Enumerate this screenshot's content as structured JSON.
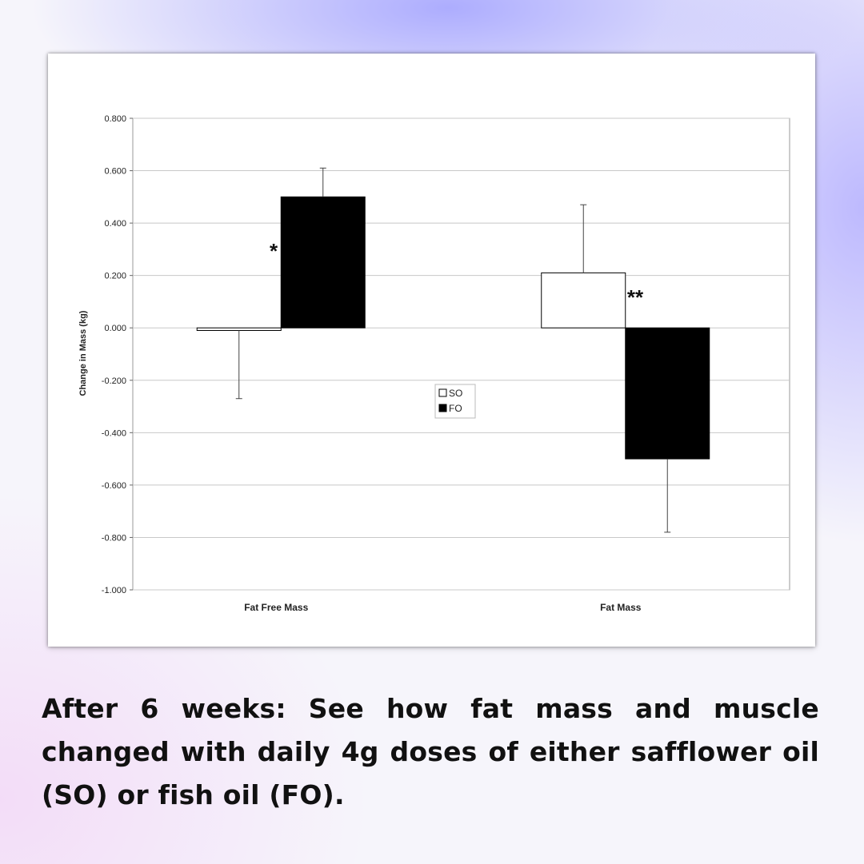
{
  "caption": "After 6 weeks: See how fat mass and muscle changed with daily 4g doses of either safflower oil (SO) or fish oil (FO).",
  "chart_data": {
    "type": "bar",
    "categories": [
      "Fat Free Mass",
      "Fat Mass"
    ],
    "ylabel": "Change in Mass (kg)",
    "xlabel": "",
    "ylim": [
      -1.0,
      0.8
    ],
    "yticks": [
      0.8,
      0.6,
      0.4,
      0.2,
      0.0,
      -0.2,
      -0.4,
      -0.6,
      -0.8,
      -1.0
    ],
    "ytick_labels": [
      "0.800",
      "0.600",
      "0.400",
      "0.200",
      "0.000",
      "-0.200",
      "-0.400",
      "-0.600",
      "-0.800",
      "-1.000"
    ],
    "grid": true,
    "legend_position": "center",
    "series": [
      {
        "name": "SO",
        "color": "#ffffff",
        "values": [
          -0.01,
          0.21
        ],
        "errors": [
          0.26,
          0.26
        ]
      },
      {
        "name": "FO",
        "color": "#000000",
        "values": [
          0.5,
          -0.5
        ],
        "errors": [
          0.11,
          0.28
        ]
      }
    ],
    "annotations": [
      {
        "text": "*",
        "category": 0
      },
      {
        "text": "**",
        "category": 1
      }
    ]
  }
}
